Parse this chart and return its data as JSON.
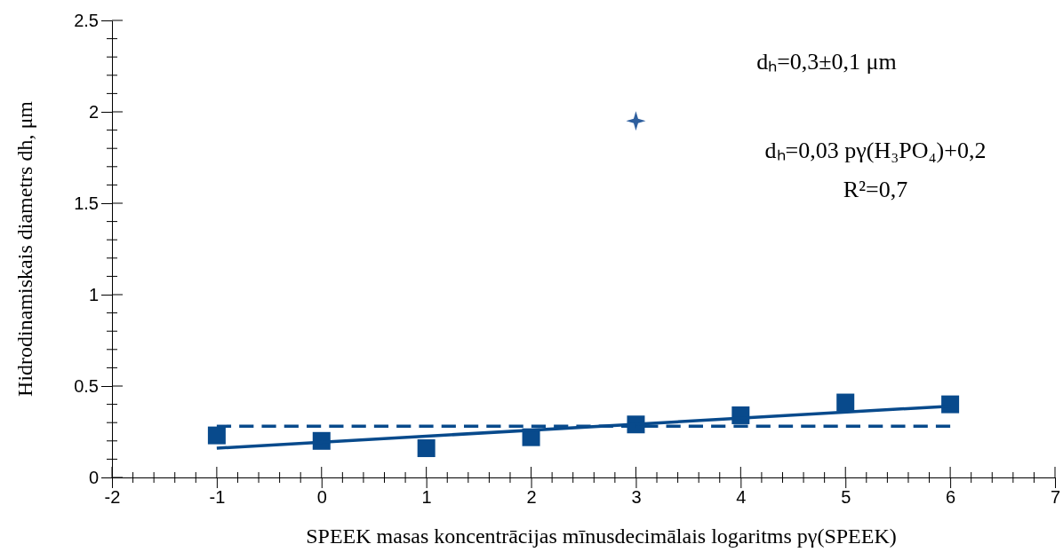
{
  "chart_data": {
    "type": "scatter",
    "xlabel": "SPEEK masas koncentrācijas mīnusdecimālais logaritms pγ(SPEEK)",
    "ylabel": "Hidrodinamiskais diametrs dh, μm",
    "xlim": [
      -2,
      7
    ],
    "xticks": [
      -2,
      -1,
      0,
      1,
      2,
      3,
      4,
      5,
      6,
      7
    ],
    "ylim": [
      0,
      2.5
    ],
    "yticks": [
      0,
      0.5,
      1,
      1.5,
      2,
      2.5
    ],
    "grid": false,
    "series": [
      {
        "type": "scatter",
        "marker": "square",
        "color": "#084a8c",
        "x": [
          -1,
          0,
          1,
          2,
          3,
          4,
          5,
          6
        ],
        "values": [
          0.23,
          0.2,
          0.16,
          0.22,
          0.29,
          0.34,
          0.41,
          0.4
        ]
      },
      {
        "type": "scatter",
        "marker": "star",
        "color": "#2e5f9e",
        "x": [
          3
        ],
        "values": [
          1.95
        ]
      },
      {
        "type": "line",
        "line_style": "solid",
        "color": "#084a8c",
        "x": [
          -1,
          6
        ],
        "values": [
          0.16,
          0.39
        ]
      },
      {
        "type": "line",
        "line_style": "dashed",
        "color": "#084a8c",
        "x": [
          -1,
          6
        ],
        "values": [
          0.28,
          0.28
        ]
      }
    ],
    "annotations": [
      "dₕ=0,3±0,1 μm",
      "dₕ=0,03 pγ(H₃PO₄)+0,2",
      "R²=0,7"
    ]
  }
}
